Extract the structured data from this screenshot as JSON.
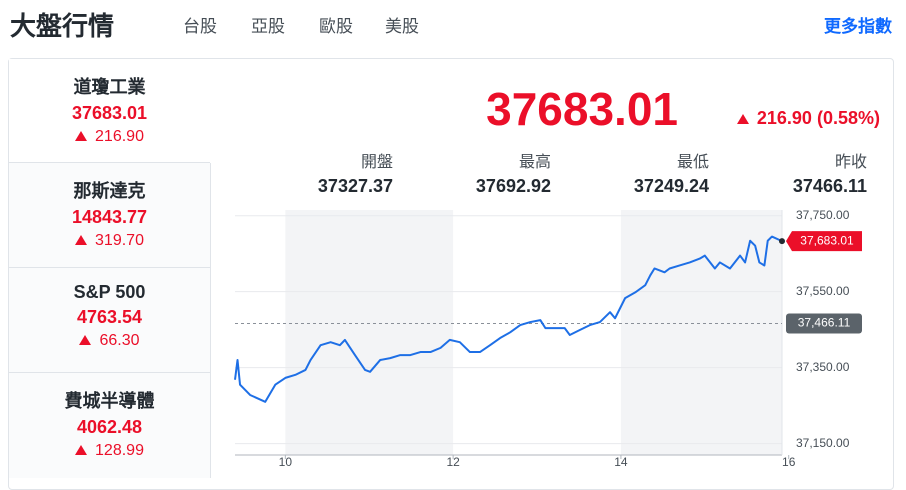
{
  "header": {
    "title": "大盤行情",
    "tabs": [
      "台股",
      "亞股",
      "歐股",
      "美股"
    ],
    "active_tab": 3,
    "more_link": "更多指數"
  },
  "indices": [
    {
      "name": "道瓊工業",
      "value": "37683.01",
      "change": "216.90"
    },
    {
      "name": "那斯達克",
      "value": "14843.77",
      "change": "319.70"
    },
    {
      "name": "S&P 500",
      "value": "4763.54",
      "change": "66.30"
    },
    {
      "name": "費城半導體",
      "value": "4062.48",
      "change": "128.99"
    }
  ],
  "summary": {
    "price": "37683.01",
    "change": "216.90",
    "change_pct": "(0.58%)",
    "stats": [
      {
        "label": "開盤",
        "value": "37327.37"
      },
      {
        "label": "最高",
        "value": "37692.92"
      },
      {
        "label": "最低",
        "value": "37249.24"
      },
      {
        "label": "昨收",
        "value": "37466.11"
      }
    ]
  },
  "chart_data": {
    "type": "line",
    "color": "#1e6fe6",
    "x": [
      9.4,
      9.43,
      9.46,
      9.58,
      9.76,
      9.88,
      10.0,
      10.12,
      10.24,
      10.3,
      10.42,
      10.54,
      10.65,
      10.71,
      10.83,
      10.95,
      11.01,
      11.13,
      11.25,
      11.37,
      11.49,
      11.61,
      11.73,
      11.85,
      11.96,
      12.08,
      12.2,
      12.32,
      12.44,
      12.56,
      12.68,
      12.8,
      12.92,
      13.04,
      13.1,
      13.21,
      13.33,
      13.39,
      13.51,
      13.63,
      13.75,
      13.87,
      13.93,
      14.05,
      14.17,
      14.29,
      14.35,
      14.4,
      14.52,
      14.58,
      14.7,
      14.82,
      14.94,
      15.0,
      15.12,
      15.18,
      15.3,
      15.42,
      15.48,
      15.54,
      15.6,
      15.65,
      15.71,
      15.75,
      15.8,
      15.92
    ],
    "values": [
      37318,
      37370,
      37305,
      37278,
      37260,
      37305,
      37323,
      37331,
      37344,
      37370,
      37409,
      37417,
      37409,
      37423,
      37383,
      37344,
      37339,
      37370,
      37375,
      37383,
      37383,
      37391,
      37391,
      37402,
      37423,
      37417,
      37391,
      37391,
      37409,
      37428,
      37443,
      37462,
      37470,
      37475,
      37454,
      37454,
      37454,
      37436,
      37449,
      37462,
      37470,
      37496,
      37480,
      37533,
      37548,
      37567,
      37593,
      37611,
      37601,
      37611,
      37619,
      37627,
      37637,
      37645,
      37611,
      37627,
      37611,
      37645,
      37627,
      37684,
      37671,
      37627,
      37619,
      37684,
      37695,
      37683.01
    ],
    "xlim": [
      9.4,
      15.92
    ],
    "ylim": [
      37120,
      37765
    ],
    "xticks": [
      10,
      12,
      14,
      16
    ],
    "yticks": [
      {
        "value": 37150,
        "label": "37,150.00"
      },
      {
        "value": 37350,
        "label": "37,350.00"
      },
      {
        "value": 37550,
        "label": "37,550.00"
      },
      {
        "value": 37750,
        "label": "37,750.00"
      }
    ],
    "reference_line": {
      "value": 37466.11,
      "label": "37,466.11"
    },
    "last_label": "37,683.01"
  }
}
